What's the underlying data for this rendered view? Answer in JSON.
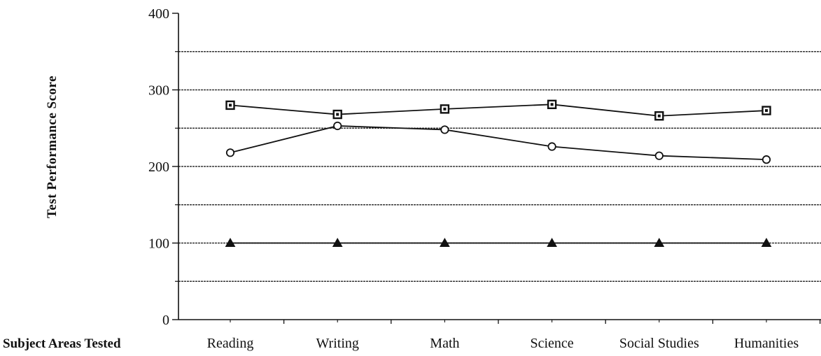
{
  "chart_data": {
    "type": "line",
    "title": "",
    "xlabel": "Subject Areas Tested",
    "ylabel": "Test Performance Score",
    "categories": [
      "Reading",
      "Writing",
      "Math",
      "Science",
      "Social Studies",
      "Humanities"
    ],
    "ylim": [
      0,
      400
    ],
    "yticks": [
      0,
      100,
      200,
      300,
      400
    ],
    "gridlines": [
      50,
      100,
      150,
      200,
      250,
      300,
      350
    ],
    "grid": true,
    "legend": "none",
    "series": [
      {
        "marker": "square",
        "values": [
          280,
          268,
          275,
          281,
          266,
          273
        ]
      },
      {
        "marker": "circle",
        "values": [
          218,
          253,
          248,
          226,
          214,
          209
        ]
      },
      {
        "marker": "triangle",
        "values": [
          100,
          100,
          100,
          100,
          100,
          100
        ]
      }
    ],
    "colors": {
      "ink": "#111111",
      "grid": "#333333",
      "background": "#ffffff"
    }
  }
}
